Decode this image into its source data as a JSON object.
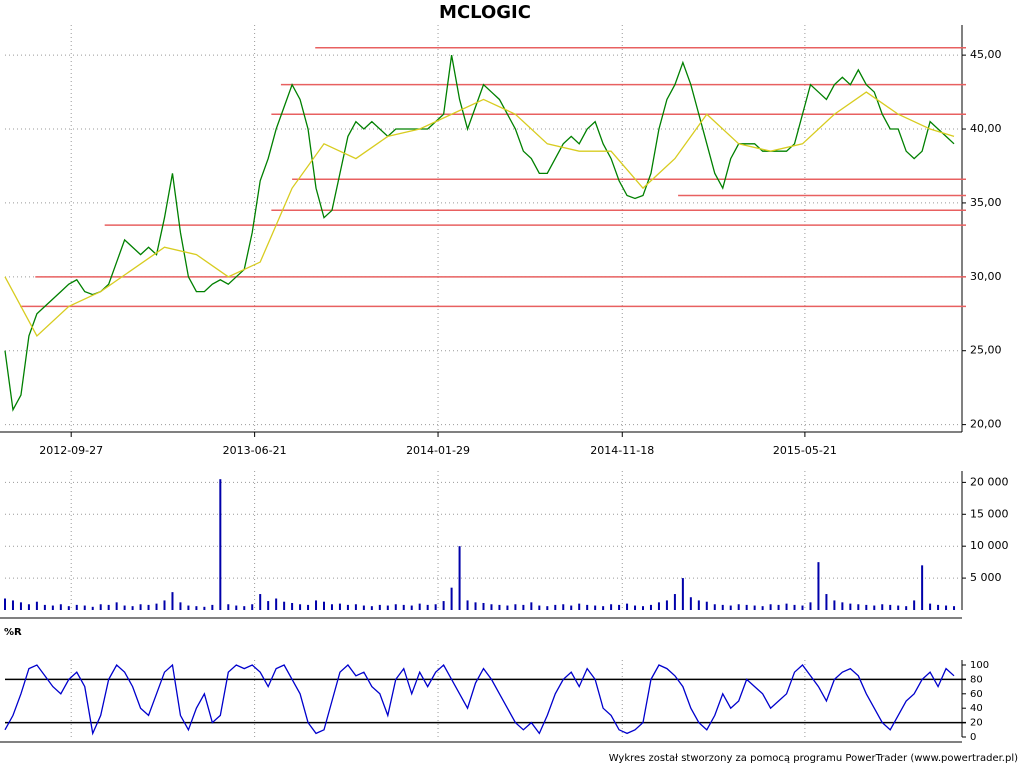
{
  "chart_data": [
    {
      "type": "line",
      "title": "MCLOGIC",
      "xlim": [
        0,
        120
      ],
      "xticks": [
        {
          "value": 8.3,
          "label": "2012-09-27"
        },
        {
          "value": 31.3,
          "label": "2013-06-21"
        },
        {
          "value": 54.3,
          "label": "2014-01-29"
        },
        {
          "value": 77.4,
          "label": "2014-11-18"
        },
        {
          "value": 100.3,
          "label": "2015-05-21"
        }
      ],
      "ylim": [
        19.5,
        46.7
      ],
      "yticks": [
        {
          "value": 20,
          "label": "20,00"
        },
        {
          "value": 25,
          "label": "25,00"
        },
        {
          "value": 30,
          "label": "30,00"
        },
        {
          "value": 35,
          "label": "35,00"
        },
        {
          "value": 40,
          "label": "40,00"
        },
        {
          "value": 45,
          "label": "45,00"
        }
      ],
      "grid": true,
      "hline_color": "#e86060",
      "hlines": [
        {
          "value": 45.5,
          "start": 38.9
        },
        {
          "value": 43,
          "start": 34.6
        },
        {
          "value": 41,
          "start": 33.4
        },
        {
          "value": 36.6,
          "start": 36
        },
        {
          "value": 35.5,
          "start": 84.4
        },
        {
          "value": 34.5,
          "start": 33.4
        },
        {
          "value": 33.5,
          "start": 12.5
        },
        {
          "value": 30,
          "start": 3.8
        },
        {
          "value": 28,
          "start": 1.9
        }
      ],
      "series": [
        {
          "color": "#008000",
          "values": [
            25,
            21,
            22,
            26,
            27.5,
            28,
            28.5,
            29,
            29.5,
            29.8,
            29,
            28.8,
            29,
            29.5,
            31,
            32.5,
            32,
            31.5,
            32,
            31.5,
            34,
            37,
            33,
            30,
            29,
            29,
            29.5,
            29.8,
            29.5,
            30,
            30.5,
            33,
            36.5,
            38,
            40,
            41.5,
            43,
            42,
            40,
            36,
            34,
            34.5,
            37,
            39.5,
            40.5,
            40,
            40.5,
            40,
            39.5,
            40,
            40,
            40,
            40,
            40,
            40.5,
            41,
            45,
            42,
            40,
            41.5,
            43,
            42.5,
            42,
            41,
            40,
            38.5,
            38,
            37,
            37,
            38,
            39,
            39.5,
            39,
            40,
            40.5,
            39,
            38,
            36.5,
            35.5,
            35.3,
            35.5,
            37,
            40,
            42,
            43,
            44.5,
            43,
            41,
            39,
            37,
            36,
            38,
            39,
            39,
            39,
            38.5,
            38.5,
            38.5,
            38.5,
            39,
            41,
            43,
            42.5,
            42,
            43,
            43.5,
            43,
            44,
            43,
            42.5,
            41,
            40,
            40,
            38.5,
            38,
            38.5,
            40.5,
            40,
            39.5,
            39
          ]
        },
        {
          "color": "#d8cc20",
          "x": [
            0,
            4,
            8,
            12,
            16,
            20,
            24,
            28,
            32,
            36,
            40,
            44,
            48,
            52,
            56,
            60,
            64,
            68,
            72,
            76,
            80,
            84,
            88,
            92,
            96,
            100,
            104,
            108,
            112,
            116,
            119
          ],
          "values": [
            30,
            26,
            28,
            29,
            30.5,
            32,
            31.5,
            30,
            31,
            36,
            39,
            38,
            39.5,
            40,
            41,
            42,
            41,
            39,
            38.5,
            38.5,
            36,
            38,
            41,
            39,
            38.5,
            39,
            41,
            42.5,
            41,
            40,
            39.5
          ]
        }
      ]
    },
    {
      "type": "bar",
      "color": "#0000aa",
      "xlim": [
        0,
        120
      ],
      "ylim": [
        0,
        21000
      ],
      "yticks": [
        {
          "value": 5000,
          "label": "5 000"
        },
        {
          "value": 10000,
          "label": "10 000"
        },
        {
          "value": 15000,
          "label": "15 000"
        },
        {
          "value": 20000,
          "label": "20 000"
        }
      ],
      "grid": true,
      "values": [
        1800,
        1500,
        1200,
        900,
        1300,
        800,
        700,
        900,
        600,
        800,
        700,
        500,
        900,
        800,
        1200,
        700,
        600,
        900,
        800,
        1000,
        1500,
        2800,
        1200,
        700,
        600,
        500,
        800,
        20500,
        900,
        700,
        600,
        900,
        2500,
        1400,
        1800,
        1300,
        1100,
        900,
        800,
        1500,
        1300,
        900,
        1000,
        800,
        900,
        700,
        600,
        800,
        700,
        900,
        800,
        700,
        1000,
        800,
        900,
        1400,
        3500,
        10000,
        1500,
        1200,
        1100,
        900,
        800,
        700,
        900,
        800,
        1200,
        700,
        600,
        800,
        900,
        700,
        1000,
        800,
        700,
        600,
        900,
        800,
        1000,
        700,
        600,
        800,
        1200,
        1500,
        2500,
        5000,
        2000,
        1500,
        1300,
        900,
        800,
        700,
        900,
        800,
        700,
        600,
        900,
        800,
        1000,
        800,
        700,
        1200,
        7500,
        2500,
        1500,
        1200,
        1000,
        900,
        800,
        700,
        900,
        800,
        700,
        600,
        1500,
        7000,
        1000,
        800,
        700,
        600
      ]
    },
    {
      "type": "line",
      "label": "%R",
      "xlim": [
        0,
        120
      ],
      "ylim": [
        0,
        100
      ],
      "yticks": [
        0,
        20,
        40,
        60,
        80,
        100
      ],
      "hline_color": "#000000",
      "hlines": [
        {
          "value": 20,
          "start": 0
        },
        {
          "value": 80,
          "start": 0
        }
      ],
      "series": [
        {
          "color": "#0000cc",
          "values": [
            10,
            30,
            60,
            95,
            100,
            85,
            70,
            60,
            80,
            90,
            70,
            5,
            30,
            80,
            100,
            90,
            70,
            40,
            30,
            60,
            90,
            100,
            30,
            10,
            40,
            60,
            20,
            30,
            90,
            100,
            95,
            100,
            90,
            70,
            95,
            100,
            80,
            60,
            20,
            5,
            10,
            50,
            90,
            100,
            85,
            90,
            70,
            60,
            30,
            80,
            95,
            60,
            90,
            70,
            90,
            100,
            80,
            60,
            40,
            75,
            95,
            80,
            60,
            40,
            20,
            10,
            20,
            5,
            30,
            60,
            80,
            90,
            70,
            95,
            80,
            40,
            30,
            10,
            5,
            10,
            20,
            80,
            100,
            95,
            85,
            70,
            40,
            20,
            10,
            30,
            60,
            40,
            50,
            80,
            70,
            60,
            40,
            50,
            60,
            90,
            100,
            85,
            70,
            50,
            80,
            90,
            95,
            85,
            60,
            40,
            20,
            10,
            30,
            50,
            60,
            80,
            90,
            70,
            95,
            85
          ]
        }
      ]
    }
  ],
  "footer": "Wykres został stworzony za pomocą programu PowerTrader (www.powertrader.pl)"
}
